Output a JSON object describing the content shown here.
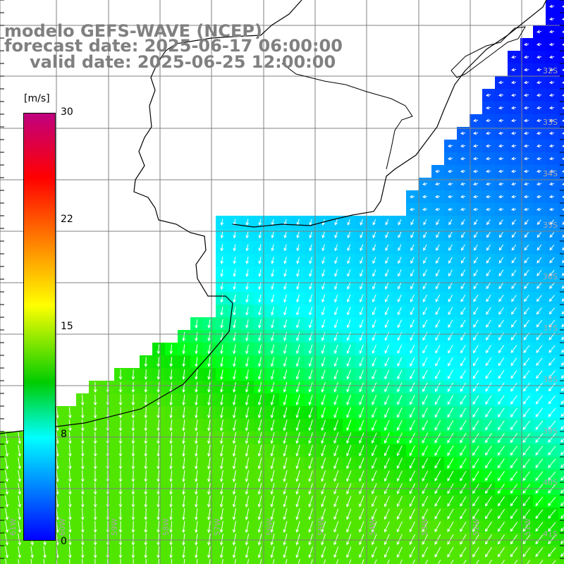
{
  "title": {
    "line1": "modelo GEFS-WAVE (NCEP)",
    "line2": "forecast date: 2025-06-17 06:00:00",
    "line3": "valid date: 2025-06-25 12:00:00"
  },
  "colorbar": {
    "unit": "[m/s]",
    "ticks": [
      "30",
      "22",
      "15",
      "8",
      "0"
    ],
    "colors": [
      "#c00080",
      "#ff0000",
      "#ff8000",
      "#ffff00",
      "#00cc00",
      "#00ffff",
      "#0080ff",
      "#0000ff"
    ]
  },
  "grid": {
    "lat_labels": [
      "32S",
      "33S",
      "34S",
      "35S",
      "36S",
      "37S",
      "38S",
      "39S",
      "40S",
      "41S"
    ],
    "lon_labels": [
      "61W",
      "60W",
      "59W",
      "58W",
      "57W",
      "56W",
      "55W",
      "54W",
      "53W",
      "52W",
      "51W"
    ]
  }
}
